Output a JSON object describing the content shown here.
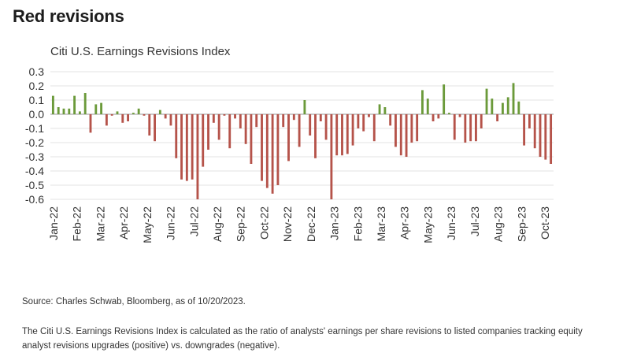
{
  "title": "Red revisions",
  "chart_data": {
    "type": "bar",
    "title": "Citi U.S. Earnings Revisions Index",
    "xlabel": "",
    "ylabel": "",
    "ylim": [
      -0.6,
      0.3
    ],
    "yticks": [
      "0.3",
      "0.2",
      "0.1",
      "0.0",
      "-0.1",
      "-0.2",
      "-0.3",
      "-0.4",
      "-0.5",
      "-0.6"
    ],
    "grid": true,
    "x_tick_labels": [
      "Jan-22",
      "Feb-22",
      "Mar-22",
      "Apr-22",
      "May-22",
      "Jun-22",
      "Jul-22",
      "Aug-22",
      "Sep-22",
      "Oct-22",
      "Nov-22",
      "Dec-22",
      "Jan-23",
      "Feb-23",
      "Mar-23",
      "Apr-23",
      "May-23",
      "Jun-23",
      "Jul-23",
      "Aug-23",
      "Sep-23",
      "Oct-23"
    ],
    "frequency": "weekly",
    "x_start": "2022-01-07",
    "positive_color": "#6b9a3a",
    "negative_color": "#b5534a",
    "values": [
      0.13,
      0.05,
      0.04,
      0.04,
      0.13,
      0.02,
      0.15,
      -0.13,
      0.07,
      0.08,
      -0.08,
      -0.01,
      0.02,
      -0.06,
      -0.05,
      0.01,
      0.04,
      -0.01,
      -0.15,
      -0.19,
      0.03,
      -0.03,
      -0.08,
      -0.31,
      -0.46,
      -0.47,
      -0.46,
      -0.6,
      -0.37,
      -0.25,
      -0.06,
      -0.18,
      -0.01,
      -0.24,
      -0.03,
      -0.1,
      -0.21,
      -0.35,
      -0.09,
      -0.47,
      -0.52,
      -0.56,
      -0.5,
      -0.09,
      -0.33,
      -0.04,
      -0.23,
      0.1,
      -0.15,
      -0.31,
      -0.05,
      -0.18,
      -0.6,
      -0.29,
      -0.29,
      -0.28,
      -0.22,
      -0.1,
      -0.12,
      -0.02,
      -0.19,
      0.07,
      0.05,
      -0.08,
      -0.23,
      -0.29,
      -0.3,
      -0.2,
      -0.19,
      0.17,
      0.11,
      -0.05,
      -0.03,
      0.21,
      0.01,
      -0.18,
      -0.02,
      -0.2,
      -0.19,
      -0.19,
      -0.1,
      0.18,
      0.11,
      -0.05,
      0.08,
      0.12,
      0.22,
      0.09,
      -0.22,
      -0.1,
      -0.24,
      -0.3,
      -0.32,
      -0.35
    ]
  },
  "source_text": "Source: Charles Schwab, Bloomberg, as of 10/20/2023.",
  "note_text": "The Citi U.S. Earnings Revisions Index is calculated as the ratio of analysts' earnings per share revisions to listed companies tracking equity analyst revisions upgrades (positive) vs. downgrades (negative)."
}
